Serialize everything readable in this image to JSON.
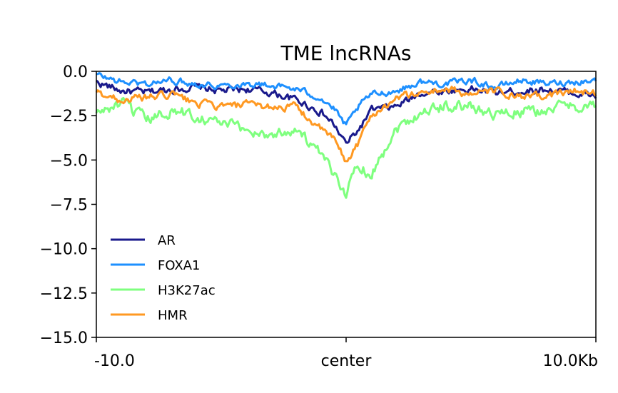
{
  "chart_data": {
    "type": "line",
    "title": "TME lncRNAs",
    "xlabel": "",
    "ylabel": "",
    "x_ticks": [
      "-10.0",
      "center",
      "10.0Kb"
    ],
    "y_ticks": [
      "0.0",
      "−2.5",
      "−5.0",
      "−7.5",
      "−10.0",
      "−12.5",
      "−15.0"
    ],
    "x_range": [
      -10,
      10
    ],
    "ylim": [
      -15,
      0
    ],
    "grid": false,
    "legend_position": "lower-left",
    "x": [
      -10,
      -9,
      -8,
      -7,
      -6,
      -5,
      -4,
      -3,
      -2,
      -1,
      -0.5,
      0,
      0.5,
      1,
      2,
      3,
      4,
      5,
      6,
      7,
      8,
      9,
      10
    ],
    "series": [
      {
        "name": "AR",
        "color": "#1a1a8c",
        "values": [
          -0.6,
          -1.1,
          -1.2,
          -1.0,
          -0.9,
          -1.1,
          -1.0,
          -1.2,
          -1.6,
          -2.3,
          -3.0,
          -4.1,
          -3.3,
          -2.2,
          -2.0,
          -1.2,
          -1.1,
          -1.0,
          -1.2,
          -1.1,
          -1.0,
          -1.2,
          -1.4
        ]
      },
      {
        "name": "FOXA1",
        "color": "#1e90ff",
        "values": [
          -0.2,
          -0.6,
          -0.7,
          -0.5,
          -0.7,
          -0.8,
          -0.7,
          -0.8,
          -1.0,
          -1.5,
          -2.1,
          -3.1,
          -2.0,
          -1.3,
          -1.1,
          -0.6,
          -0.7,
          -0.5,
          -0.9,
          -0.5,
          -0.7,
          -0.6,
          -0.5
        ]
      },
      {
        "name": "H3K27ac",
        "color": "#7fff7f",
        "values": [
          -2.4,
          -1.8,
          -2.8,
          -2.2,
          -2.5,
          -2.9,
          -3.3,
          -3.6,
          -3.2,
          -4.8,
          -5.8,
          -6.8,
          -5.2,
          -5.8,
          -3.2,
          -2.3,
          -1.9,
          -2.0,
          -2.4,
          -2.3,
          -2.2,
          -1.9,
          -2.0
        ]
      },
      {
        "name": "HMR",
        "color": "#ff9922",
        "values": [
          -1.2,
          -1.6,
          -1.5,
          -1.3,
          -1.8,
          -2.0,
          -1.9,
          -2.0,
          -2.0,
          -3.3,
          -3.8,
          -5.1,
          -4.0,
          -2.5,
          -1.5,
          -1.2,
          -1.0,
          -1.3,
          -1.1,
          -1.5,
          -1.4,
          -1.1,
          -1.2
        ]
      }
    ]
  }
}
